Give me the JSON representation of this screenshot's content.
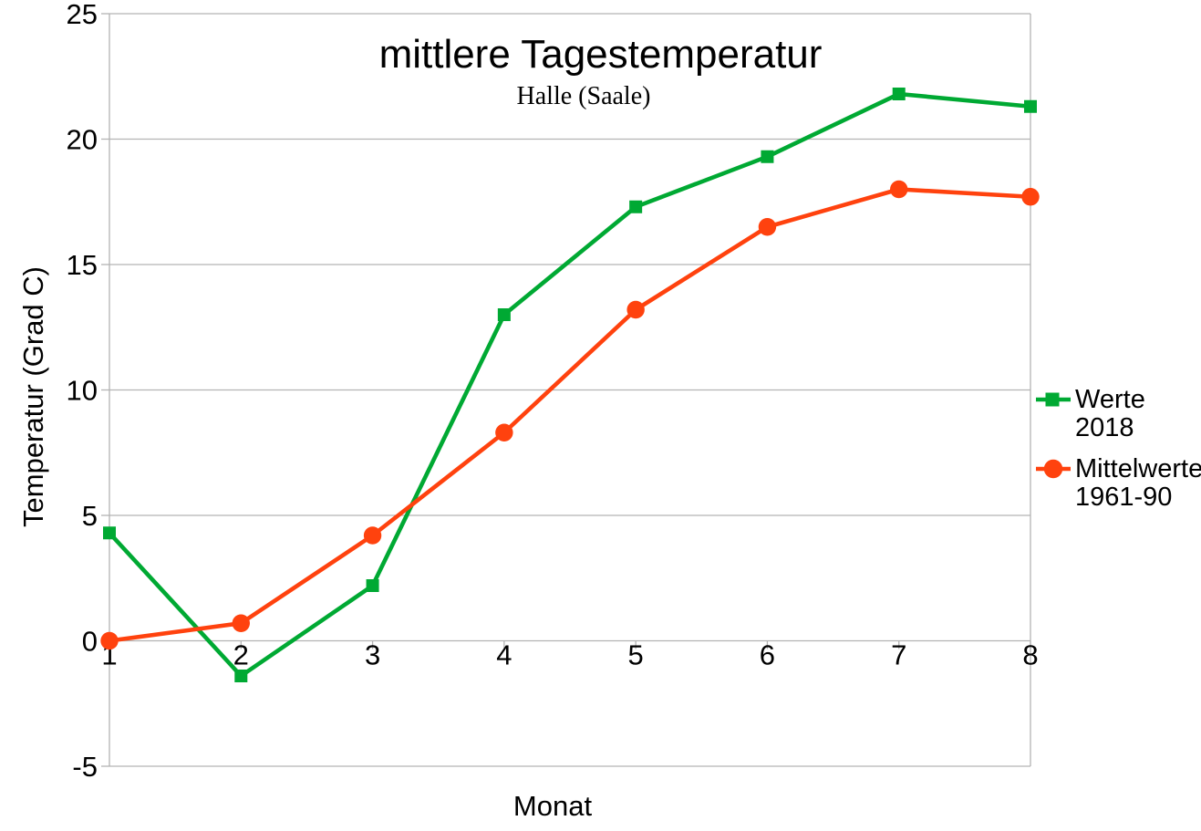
{
  "chart_data": {
    "type": "line",
    "title": "mittlere Tagestemperatur",
    "subtitle": "Halle (Saale)",
    "xlabel": "Monat",
    "ylabel": "Temperatur (Grad C)",
    "categories": [
      1,
      2,
      3,
      4,
      5,
      6,
      7,
      8
    ],
    "ylim": [
      -5,
      25
    ],
    "yticks": [
      25,
      20,
      15,
      10,
      5,
      0,
      -5
    ],
    "grid": "horizontal-only",
    "legend_position": "right",
    "axis_color": "#b3b3b3",
    "text_color": "#000000",
    "background_color": "#ffffff",
    "series": [
      {
        "name": "Werte 2018",
        "legend_lines": [
          "Werte",
          "2018"
        ],
        "color": "#00A933",
        "marker": "square",
        "values": [
          4.3,
          -1.4,
          2.2,
          13.0,
          17.3,
          19.3,
          21.8,
          21.3
        ]
      },
      {
        "name": "Mittelwerte 1961-90",
        "legend_lines": [
          "Mittelwerte",
          "1961-90"
        ],
        "color": "#FF420E",
        "marker": "circle",
        "values": [
          0.0,
          0.7,
          4.2,
          8.3,
          13.2,
          16.5,
          18.0,
          17.7
        ]
      }
    ]
  }
}
